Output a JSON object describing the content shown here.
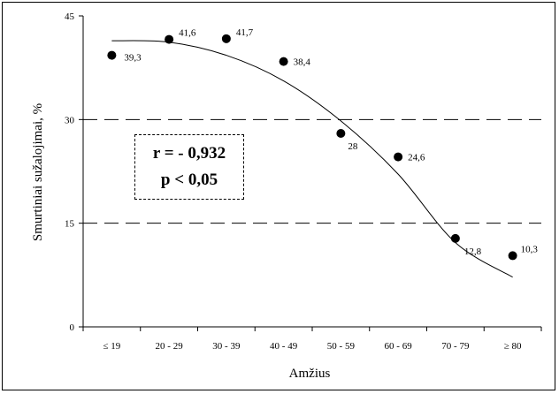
{
  "chart_data": {
    "type": "scatter",
    "categories": [
      "≤ 19",
      "20 - 29",
      "30 - 39",
      "40 - 49",
      "50 - 59",
      "60 - 69",
      "70 - 79",
      "≥ 80"
    ],
    "values": [
      39.3,
      41.6,
      41.7,
      38.4,
      28,
      24.6,
      12.8,
      10.3
    ],
    "point_labels": [
      "39,3",
      "41,6",
      "41,7",
      "38,4",
      "28",
      "24,6",
      "12,8",
      "10,3"
    ],
    "trendline": [
      41.4,
      41.2,
      39.3,
      35.6,
      29.8,
      22.1,
      12.2,
      7.2
    ],
    "xlabel": "Amžius",
    "ylabel": "Smurtiniai sužalojimai, %",
    "ylim": [
      0,
      45
    ],
    "yticks": [
      "0",
      "15",
      "30",
      "45"
    ],
    "reference_lines": [
      15,
      30
    ],
    "grid": false,
    "annotation": {
      "line1": "r = - 0,932",
      "line2": "p < 0,05"
    }
  }
}
